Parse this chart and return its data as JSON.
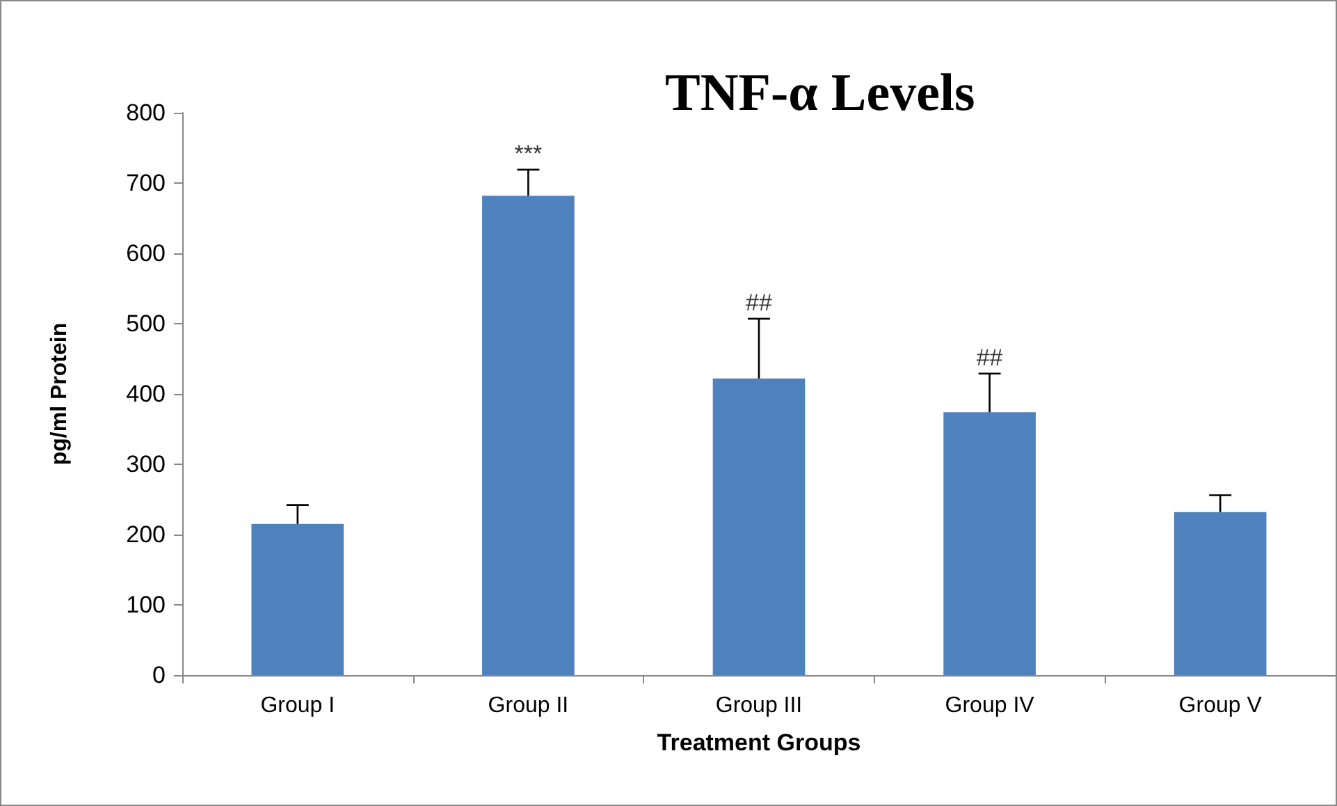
{
  "chart_data": {
    "type": "bar",
    "title": "TNF-α Levels",
    "xlabel": "Treatment Groups",
    "ylabel": "pg/ml Protein",
    "categories": [
      "Group I",
      "Group II",
      "Group III",
      "Group IV",
      "Group V"
    ],
    "values": [
      215,
      682,
      422,
      374,
      232
    ],
    "errors": [
      27,
      37,
      85,
      55,
      24
    ],
    "color": "#4f81bd",
    "ylim": [
      0,
      800
    ],
    "yticks": [
      0,
      100,
      200,
      300,
      400,
      500,
      600,
      700,
      800
    ],
    "grid": false,
    "annotations": [
      {
        "text": "***",
        "x": "Group II",
        "y": 719
      },
      {
        "text": "##",
        "x": "Group III",
        "y": 507
      },
      {
        "text": "##",
        "x": "Group IV",
        "y": 429
      }
    ]
  }
}
